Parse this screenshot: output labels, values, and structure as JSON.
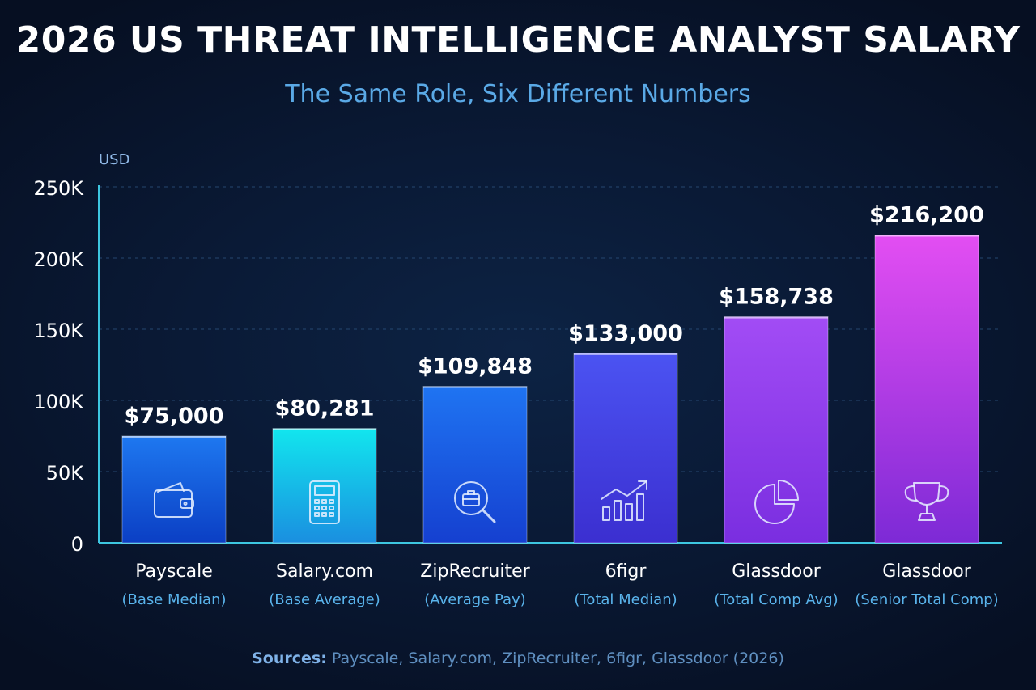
{
  "chart_data": {
    "type": "bar",
    "title": "2026 US THREAT INTELLIGENCE ANALYST SALARY",
    "subtitle": "The Same Role, Six Different Numbers",
    "ylabel": "USD",
    "ylim": [
      0,
      250000
    ],
    "yticks": [
      {
        "value": 0,
        "label": "0"
      },
      {
        "value": 50000,
        "label": "50K"
      },
      {
        "value": 100000,
        "label": "100K"
      },
      {
        "value": 150000,
        "label": "150K"
      },
      {
        "value": 200000,
        "label": "200K"
      },
      {
        "value": 250000,
        "label": "250K"
      }
    ],
    "grid": true,
    "bars": [
      {
        "source": "Payscale",
        "metric": "(Base Median)",
        "value": 75000,
        "value_label": "$75,000",
        "icon": "wallet-icon",
        "color_top": "#1e78f0",
        "color_bottom": "#0b3fc4"
      },
      {
        "source": "Salary.com",
        "metric": "(Base Average)",
        "value": 80281,
        "value_label": "$80,281",
        "icon": "calculator-icon",
        "color_top": "#12e6ee",
        "color_bottom": "#1a8fe0"
      },
      {
        "source": "ZipRecruiter",
        "metric": "(Average Pay)",
        "value": 109848,
        "value_label": "$109,848",
        "icon": "briefcase-search-icon",
        "color_top": "#1f74f2",
        "color_bottom": "#1540d0"
      },
      {
        "source": "6figr",
        "metric": "(Total Median)",
        "value": 133000,
        "value_label": "$133,000",
        "icon": "growth-chart-icon",
        "color_top": "#4b53f2",
        "color_bottom": "#3b2fd0"
      },
      {
        "source": "Glassdoor",
        "metric": "(Total Comp Avg)",
        "value": 158738,
        "value_label": "$158,738",
        "icon": "pie-chart-icon",
        "color_top": "#a24cf5",
        "color_bottom": "#7a2ee0"
      },
      {
        "source": "Glassdoor",
        "metric": "(Senior Total Comp)",
        "value": 216200,
        "value_label": "$216,200",
        "icon": "trophy-icon",
        "color_top": "#e34ef2",
        "color_bottom": "#7d2ad6"
      }
    ]
  },
  "sources": {
    "label": "Sources:",
    "text": " Payscale, Salary.com,  ZipRecruiter, 6figr, Glassdoor  (2026)"
  }
}
